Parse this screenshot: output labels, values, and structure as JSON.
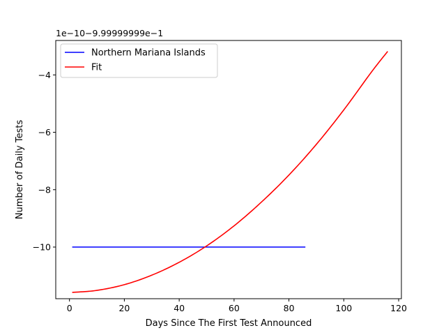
{
  "chart_data": {
    "type": "line",
    "offset_text": "1e−10−9.99999999e−1",
    "xlabel": "Days Since The First Test Announced",
    "ylabel": "Number of Daily Tests",
    "xlim": [
      -5,
      121
    ],
    "ylim": [
      -11.8,
      -2.8
    ],
    "x_ticks": [
      0,
      20,
      40,
      60,
      80,
      100,
      120
    ],
    "y_ticks": [
      -10,
      -8,
      -6,
      -4
    ],
    "grid": false,
    "legend_position": "top-left",
    "series": [
      {
        "name": "Northern Mariana Islands",
        "color": "#0000ff",
        "x": [
          1,
          86
        ],
        "y": [
          -10,
          -10
        ]
      },
      {
        "name": "Fit",
        "color": "#ff0000",
        "x": [
          1,
          10,
          20,
          30,
          40,
          50,
          60,
          70,
          80,
          90,
          100,
          110,
          116
        ],
        "y": [
          -11.58,
          -11.51,
          -11.31,
          -10.98,
          -10.53,
          -9.96,
          -9.26,
          -8.43,
          -7.49,
          -6.42,
          -5.22,
          -3.91,
          -3.18
        ]
      }
    ]
  }
}
